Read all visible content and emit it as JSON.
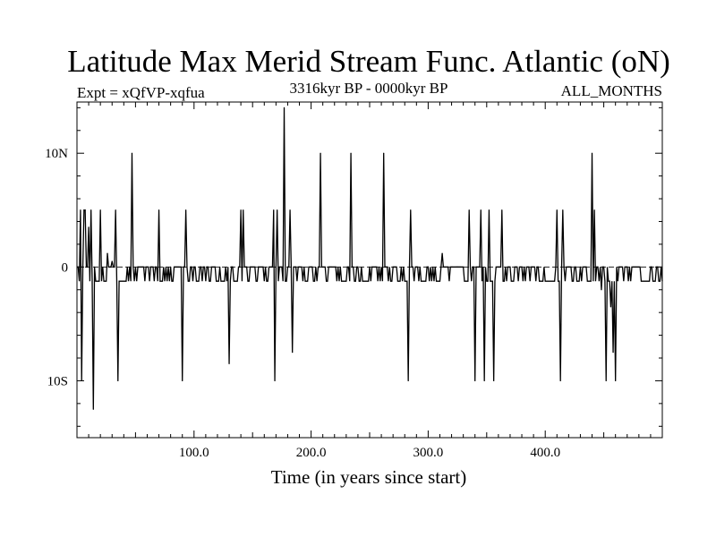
{
  "chart_data": {
    "type": "line",
    "title": "Latitude Max Merid Stream Func. Atlantic (oN)",
    "subtitle": "3316kyr BP - 0000kyr BP",
    "left_annotation": "Expt = xQfVP-xqfua",
    "right_annotation": "ALL_MONTHS",
    "xlabel": "Time (in years since start)",
    "ylabel": "",
    "xlim": [
      0,
      500
    ],
    "ylim": [
      -15,
      14.5
    ],
    "x_tick_values": [
      100,
      200,
      300,
      400
    ],
    "x_tick_labels": [
      "100.0",
      "200.0",
      "300.0",
      "400.0"
    ],
    "y_tick_values": [
      10,
      0,
      -10
    ],
    "y_tick_labels": [
      "10N",
      "0",
      "10S"
    ],
    "grid": false,
    "series_color": "#000000",
    "baseline_value": 0,
    "levels": {
      "high": 0,
      "low": -1.25
    },
    "spikes": [
      {
        "x": 3,
        "y": 5
      },
      {
        "x": 4,
        "y": -10
      },
      {
        "x": 6,
        "y": 5
      },
      {
        "x": 7,
        "y": 5
      },
      {
        "x": 10,
        "y": 3.5
      },
      {
        "x": 12,
        "y": 5
      },
      {
        "x": 14,
        "y": -12.5
      },
      {
        "x": 15,
        "y": 0
      },
      {
        "x": 20,
        "y": 5
      },
      {
        "x": 26,
        "y": 1.2
      },
      {
        "x": 30,
        "y": 0.5
      },
      {
        "x": 33,
        "y": 5
      },
      {
        "x": 35,
        "y": -10
      },
      {
        "x": 45,
        "y": 0
      },
      {
        "x": 47,
        "y": 10
      },
      {
        "x": 52,
        "y": 0
      },
      {
        "x": 63,
        "y": 0
      },
      {
        "x": 67,
        "y": 0
      },
      {
        "x": 70,
        "y": 5
      },
      {
        "x": 80,
        "y": 0
      },
      {
        "x": 90,
        "y": -10
      },
      {
        "x": 93,
        "y": 5
      },
      {
        "x": 100,
        "y": 0
      },
      {
        "x": 108,
        "y": 0
      },
      {
        "x": 115,
        "y": 0
      },
      {
        "x": 122,
        "y": 0
      },
      {
        "x": 130,
        "y": -8.5
      },
      {
        "x": 140,
        "y": 5
      },
      {
        "x": 142,
        "y": 5
      },
      {
        "x": 145,
        "y": 0
      },
      {
        "x": 150,
        "y": 0
      },
      {
        "x": 155,
        "y": 0
      },
      {
        "x": 168,
        "y": 5
      },
      {
        "x": 169,
        "y": -10
      },
      {
        "x": 171,
        "y": 5
      },
      {
        "x": 173,
        "y": 0
      },
      {
        "x": 177,
        "y": 14
      },
      {
        "x": 182,
        "y": 5
      },
      {
        "x": 184,
        "y": -7.5
      },
      {
        "x": 190,
        "y": 0
      },
      {
        "x": 200,
        "y": 0
      },
      {
        "x": 208,
        "y": 10
      },
      {
        "x": 215,
        "y": 0
      },
      {
        "x": 225,
        "y": 0
      },
      {
        "x": 234,
        "y": 10
      },
      {
        "x": 240,
        "y": 0
      },
      {
        "x": 250,
        "y": 0
      },
      {
        "x": 262,
        "y": 10
      },
      {
        "x": 270,
        "y": 0
      },
      {
        "x": 283,
        "y": -10
      },
      {
        "x": 285,
        "y": 5
      },
      {
        "x": 290,
        "y": 0
      },
      {
        "x": 300,
        "y": 0
      },
      {
        "x": 312,
        "y": 1.2
      },
      {
        "x": 325,
        "y": 0
      },
      {
        "x": 335,
        "y": 5
      },
      {
        "x": 340,
        "y": -10
      },
      {
        "x": 345,
        "y": 5
      },
      {
        "x": 348,
        "y": -10
      },
      {
        "x": 352,
        "y": 5
      },
      {
        "x": 356,
        "y": -10
      },
      {
        "x": 360,
        "y": 0
      },
      {
        "x": 363,
        "y": 5
      },
      {
        "x": 370,
        "y": 0
      },
      {
        "x": 380,
        "y": 0
      },
      {
        "x": 390,
        "y": 0
      },
      {
        "x": 410,
        "y": 5
      },
      {
        "x": 413,
        "y": -10
      },
      {
        "x": 415,
        "y": 5
      },
      {
        "x": 420,
        "y": 0
      },
      {
        "x": 430,
        "y": 0
      },
      {
        "x": 440,
        "y": 10
      },
      {
        "x": 442,
        "y": 5
      },
      {
        "x": 448,
        "y": -2
      },
      {
        "x": 452,
        "y": -10
      },
      {
        "x": 456,
        "y": -3.5
      },
      {
        "x": 458,
        "y": -7.5
      },
      {
        "x": 460,
        "y": -10
      },
      {
        "x": 463,
        "y": 0
      },
      {
        "x": 470,
        "y": 0
      },
      {
        "x": 480,
        "y": 0
      },
      {
        "x": 490,
        "y": 0
      }
    ]
  }
}
